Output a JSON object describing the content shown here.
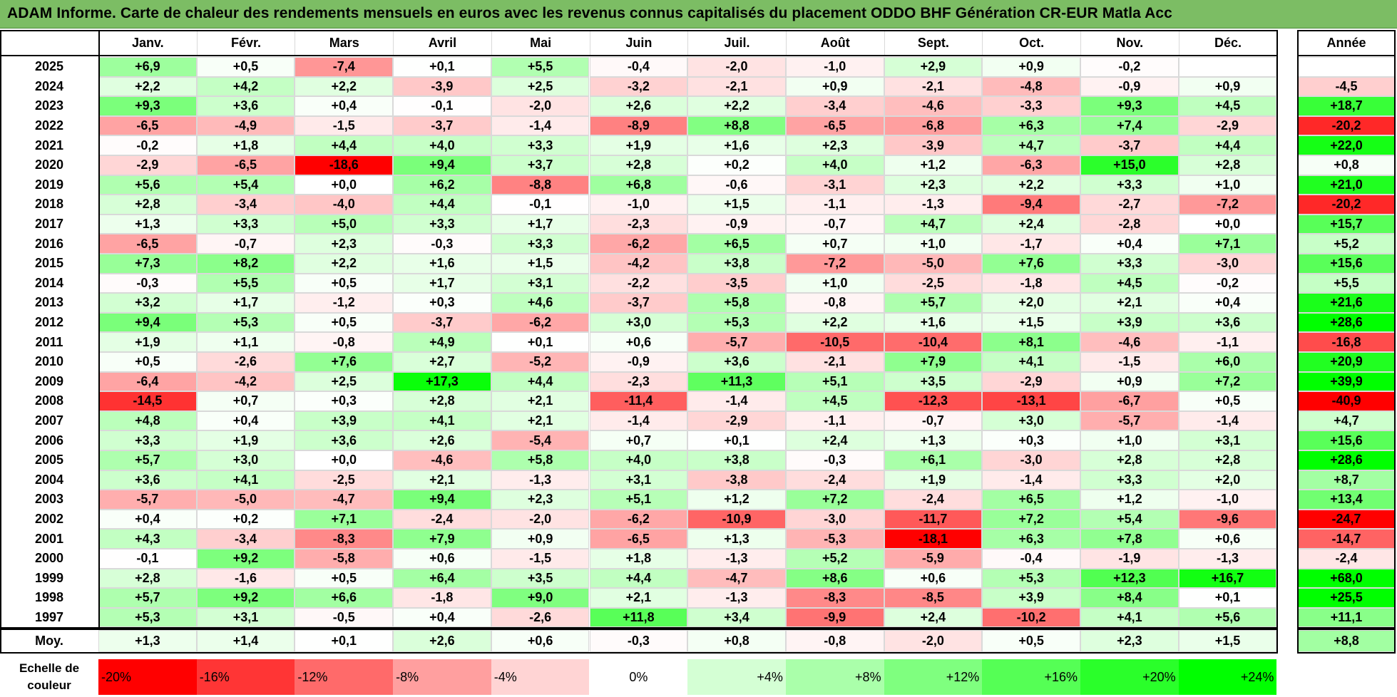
{
  "title": "ADAM Informe. Carte de chaleur des rendements mensuels en euros avec les revenus connus capitalisés du placement ODDO BHF Génération CR-EUR Matla Acc",
  "chart_data": {
    "type": "heatmap",
    "title": "ADAM Informe. Carte de chaleur des rendements mensuels en euros avec les revenus connus capitalisés du placement ODDO BHF Génération CR-EUR Matla Acc",
    "columns": [
      "Janv.",
      "Févr.",
      "Mars",
      "Avril",
      "Mai",
      "Juin",
      "Juil.",
      "Août",
      "Sept.",
      "Oct.",
      "Nov.",
      "Déc."
    ],
    "year_column_label": "Année",
    "rows": [
      {
        "year": "2025",
        "values": [
          6.9,
          0.5,
          -7.4,
          0.1,
          5.5,
          -0.4,
          -2.0,
          -1.0,
          2.9,
          0.9,
          -0.2,
          null
        ],
        "annual": null
      },
      {
        "year": "2024",
        "values": [
          2.2,
          4.2,
          2.2,
          -3.9,
          2.5,
          -3.2,
          -2.1,
          0.9,
          -2.1,
          -4.8,
          -0.9,
          0.9
        ],
        "annual": -4.5
      },
      {
        "year": "2023",
        "values": [
          9.3,
          3.6,
          0.4,
          -0.1,
          -2.0,
          2.6,
          2.2,
          -3.4,
          -4.6,
          -3.3,
          9.3,
          4.5
        ],
        "annual": 18.7
      },
      {
        "year": "2022",
        "values": [
          -6.5,
          -4.9,
          -1.5,
          -3.7,
          -1.4,
          -8.9,
          8.8,
          -6.5,
          -6.8,
          6.3,
          7.4,
          -2.9
        ],
        "annual": -20.2
      },
      {
        "year": "2021",
        "values": [
          -0.2,
          1.8,
          4.4,
          4.0,
          3.3,
          1.9,
          1.6,
          2.3,
          -3.9,
          4.7,
          -3.7,
          4.4
        ],
        "annual": 22.0
      },
      {
        "year": "2020",
        "values": [
          -2.9,
          -6.5,
          -18.6,
          9.4,
          3.7,
          2.8,
          0.2,
          4.0,
          1.2,
          -6.3,
          15.0,
          2.8
        ],
        "annual": 0.8
      },
      {
        "year": "2019",
        "values": [
          5.6,
          5.4,
          0.0,
          6.2,
          -8.8,
          6.8,
          -0.6,
          -3.1,
          2.3,
          2.2,
          3.3,
          1.0
        ],
        "annual": 21.0
      },
      {
        "year": "2018",
        "values": [
          2.8,
          -3.4,
          -4.0,
          4.4,
          -0.1,
          -1.0,
          1.5,
          -1.1,
          -1.3,
          -9.4,
          -2.7,
          -7.2
        ],
        "annual": -20.2
      },
      {
        "year": "2017",
        "values": [
          1.3,
          3.3,
          5.0,
          3.3,
          1.7,
          -2.3,
          -0.9,
          -0.7,
          4.7,
          2.4,
          -2.8,
          0.0
        ],
        "annual": 15.7
      },
      {
        "year": "2016",
        "values": [
          -6.5,
          -0.7,
          2.3,
          -0.3,
          3.3,
          -6.2,
          6.5,
          0.7,
          1.0,
          -1.7,
          0.4,
          7.1
        ],
        "annual": 5.2
      },
      {
        "year": "2015",
        "values": [
          7.3,
          8.2,
          2.2,
          1.6,
          1.5,
          -4.2,
          3.8,
          -7.2,
          -5.0,
          7.6,
          3.3,
          -3.0
        ],
        "annual": 15.6
      },
      {
        "year": "2014",
        "values": [
          -0.3,
          5.5,
          0.5,
          1.7,
          3.1,
          -2.2,
          -3.5,
          1.0,
          -2.5,
          -1.8,
          4.5,
          -0.2
        ],
        "annual": 5.5
      },
      {
        "year": "2013",
        "values": [
          3.2,
          1.7,
          -1.2,
          0.3,
          4.6,
          -3.7,
          5.8,
          -0.8,
          5.7,
          2.0,
          2.1,
          0.4
        ],
        "annual": 21.6
      },
      {
        "year": "2012",
        "values": [
          9.4,
          5.3,
          0.5,
          -3.7,
          -6.2,
          3.0,
          5.3,
          2.2,
          1.6,
          1.5,
          3.9,
          3.6
        ],
        "annual": 28.6
      },
      {
        "year": "2011",
        "values": [
          1.9,
          1.1,
          -0.8,
          4.9,
          0.1,
          0.6,
          -5.7,
          -10.5,
          -10.4,
          8.1,
          -4.6,
          -1.1
        ],
        "annual": -16.8
      },
      {
        "year": "2010",
        "values": [
          0.5,
          -2.6,
          7.6,
          2.7,
          -5.2,
          -0.9,
          3.6,
          -2.1,
          7.9,
          4.1,
          -1.5,
          6.0
        ],
        "annual": 20.9
      },
      {
        "year": "2009",
        "values": [
          -6.4,
          -4.2,
          2.5,
          17.3,
          4.4,
          -2.3,
          11.3,
          5.1,
          3.5,
          -2.9,
          0.9,
          7.2
        ],
        "annual": 39.9
      },
      {
        "year": "2008",
        "values": [
          -14.5,
          0.7,
          0.3,
          2.8,
          2.1,
          -11.4,
          -1.4,
          4.5,
          -12.3,
          -13.1,
          -6.7,
          0.5
        ],
        "annual": -40.9
      },
      {
        "year": "2007",
        "values": [
          4.8,
          0.4,
          3.9,
          4.1,
          2.1,
          -1.4,
          -2.9,
          -1.1,
          -0.7,
          3.0,
          -5.7,
          -1.4
        ],
        "annual": 4.7
      },
      {
        "year": "2006",
        "values": [
          3.3,
          1.9,
          3.6,
          2.6,
          -5.4,
          0.7,
          0.1,
          2.4,
          1.3,
          0.3,
          1.0,
          3.1
        ],
        "annual": 15.6
      },
      {
        "year": "2005",
        "values": [
          5.7,
          3.0,
          0.0,
          -4.6,
          5.8,
          4.0,
          3.8,
          -0.3,
          6.1,
          -3.0,
          2.8,
          2.8
        ],
        "annual": 28.6
      },
      {
        "year": "2004",
        "values": [
          3.6,
          4.1,
          -2.5,
          2.1,
          -1.3,
          3.1,
          -3.8,
          -2.4,
          1.9,
          -1.4,
          3.3,
          2.0
        ],
        "annual": 8.7
      },
      {
        "year": "2003",
        "values": [
          -5.7,
          -5.0,
          -4.7,
          9.4,
          2.3,
          5.1,
          1.2,
          7.2,
          -2.4,
          6.5,
          1.2,
          -1.0
        ],
        "annual": 13.4
      },
      {
        "year": "2002",
        "values": [
          0.4,
          0.2,
          7.1,
          -2.4,
          -2.0,
          -6.2,
          -10.9,
          -3.0,
          -11.7,
          7.2,
          5.4,
          -9.6
        ],
        "annual": -24.7
      },
      {
        "year": "2001",
        "values": [
          4.3,
          -3.4,
          -8.3,
          7.9,
          0.9,
          -6.5,
          1.3,
          -5.3,
          -18.1,
          6.3,
          7.8,
          0.6
        ],
        "annual": -14.7
      },
      {
        "year": "2000",
        "values": [
          -0.1,
          9.2,
          -5.8,
          0.6,
          -1.5,
          1.8,
          -1.3,
          5.2,
          -5.9,
          -0.4,
          -1.9,
          -1.3
        ],
        "annual": -2.4
      },
      {
        "year": "1999",
        "values": [
          2.8,
          -1.6,
          0.5,
          6.4,
          3.5,
          4.4,
          -4.7,
          8.6,
          0.6,
          5.3,
          12.3,
          16.7
        ],
        "annual": 68.0
      },
      {
        "year": "1998",
        "values": [
          5.7,
          9.2,
          6.6,
          -1.8,
          9.0,
          2.1,
          -1.3,
          -8.3,
          -8.5,
          3.9,
          8.4,
          0.1
        ],
        "annual": 25.5
      },
      {
        "year": "1997",
        "values": [
          5.3,
          3.1,
          -0.5,
          0.4,
          -2.6,
          11.8,
          3.4,
          -9.9,
          2.4,
          -10.2,
          4.1,
          5.6
        ],
        "annual": 11.1
      }
    ],
    "average": {
      "label": "Moy.",
      "values": [
        1.3,
        1.4,
        0.1,
        2.6,
        0.6,
        -0.3,
        0.8,
        -0.8,
        -2.0,
        0.5,
        2.3,
        1.5
      ],
      "annual": 8.8
    },
    "scale": {
      "label": "Echelle de couleur",
      "steps": [
        {
          "value": -20,
          "text": "-20%",
          "color": "#ff0000"
        },
        {
          "value": -16,
          "text": "-16%",
          "color": "#ff3535"
        },
        {
          "value": -12,
          "text": "-12%",
          "color": "#ff6a6a"
        },
        {
          "value": -8,
          "text": "-8%",
          "color": "#ff9f9f"
        },
        {
          "value": -4,
          "text": "-4%",
          "color": "#ffd4d4"
        },
        {
          "value": 0,
          "text": "0%",
          "color": "#ffffff"
        },
        {
          "value": 4,
          "text": "+4%",
          "color": "#d4ffd4"
        },
        {
          "value": 8,
          "text": "+8%",
          "color": "#aaffaa"
        },
        {
          "value": 12,
          "text": "+12%",
          "color": "#7fff7f"
        },
        {
          "value": 16,
          "text": "+16%",
          "color": "#55ff55"
        },
        {
          "value": 20,
          "text": "+20%",
          "color": "#2aff2a"
        },
        {
          "value": 24,
          "text": "+24%",
          "color": "#00ff00"
        }
      ]
    }
  }
}
